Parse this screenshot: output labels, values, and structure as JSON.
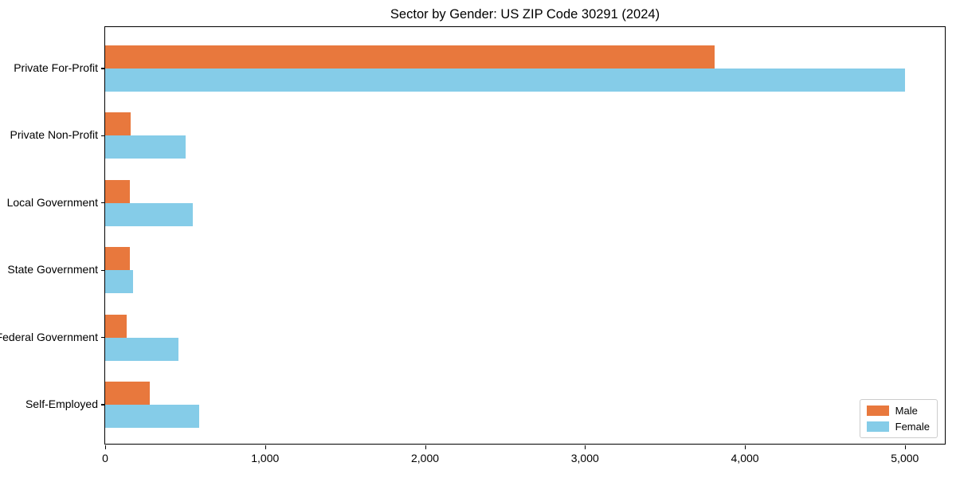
{
  "chart_data": {
    "type": "bar",
    "orientation": "horizontal",
    "title": "Sector by Gender: US ZIP Code 30291 (2024)",
    "categories": [
      "Private For-Profit",
      "Private Non-Profit",
      "Local Government",
      "State Government",
      "Federal Government",
      "Self-Employed"
    ],
    "series": [
      {
        "name": "Male",
        "color": "#e8783d",
        "values": [
          3810,
          160,
          155,
          155,
          135,
          280
        ]
      },
      {
        "name": "Female",
        "color": "#85cce8",
        "values": [
          5000,
          505,
          550,
          175,
          460,
          590
        ]
      }
    ],
    "xlabel": "",
    "ylabel": "",
    "xlim": [
      0,
      5250
    ],
    "x_ticks": [
      0,
      1000,
      2000,
      3000,
      4000,
      5000
    ],
    "x_tick_labels": [
      "0",
      "1,000",
      "2,000",
      "3,000",
      "4,000",
      "5,000"
    ],
    "grid": false,
    "legend_position": "lower right",
    "spine_color": "#000000",
    "background_color": "#ffffff"
  }
}
